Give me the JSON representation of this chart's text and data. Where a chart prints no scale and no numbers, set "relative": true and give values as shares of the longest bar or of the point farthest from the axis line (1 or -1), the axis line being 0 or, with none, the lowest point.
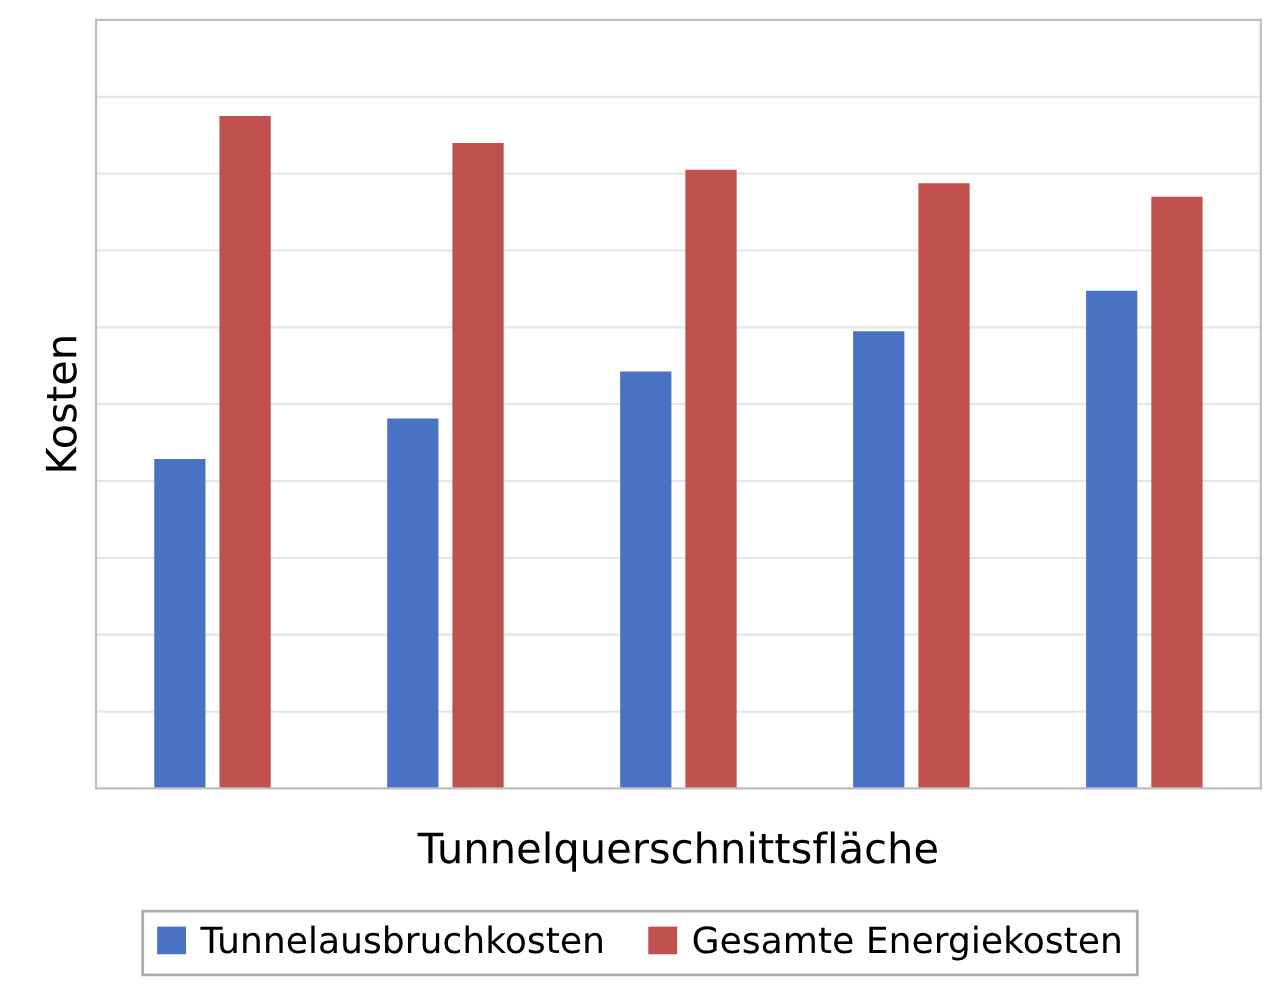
{
  "chart_data": {
    "type": "bar",
    "relative": true,
    "xlabel": "Tunnelquerschnittsfläche",
    "ylabel": "Kosten",
    "categories": [
      null,
      null,
      null,
      null,
      null
    ],
    "series": [
      {
        "name": "Tunnelausbruchkosten",
        "color": "#4a72c4",
        "values": [
          0.49,
          0.55,
          0.62,
          0.68,
          0.74
        ]
      },
      {
        "name": "Gesamte Energiekosten",
        "color": "#c0504d",
        "values": [
          1,
          0.96,
          0.92,
          0.9,
          0.88
        ]
      }
    ],
    "grid": "y",
    "legend": "bottom"
  }
}
